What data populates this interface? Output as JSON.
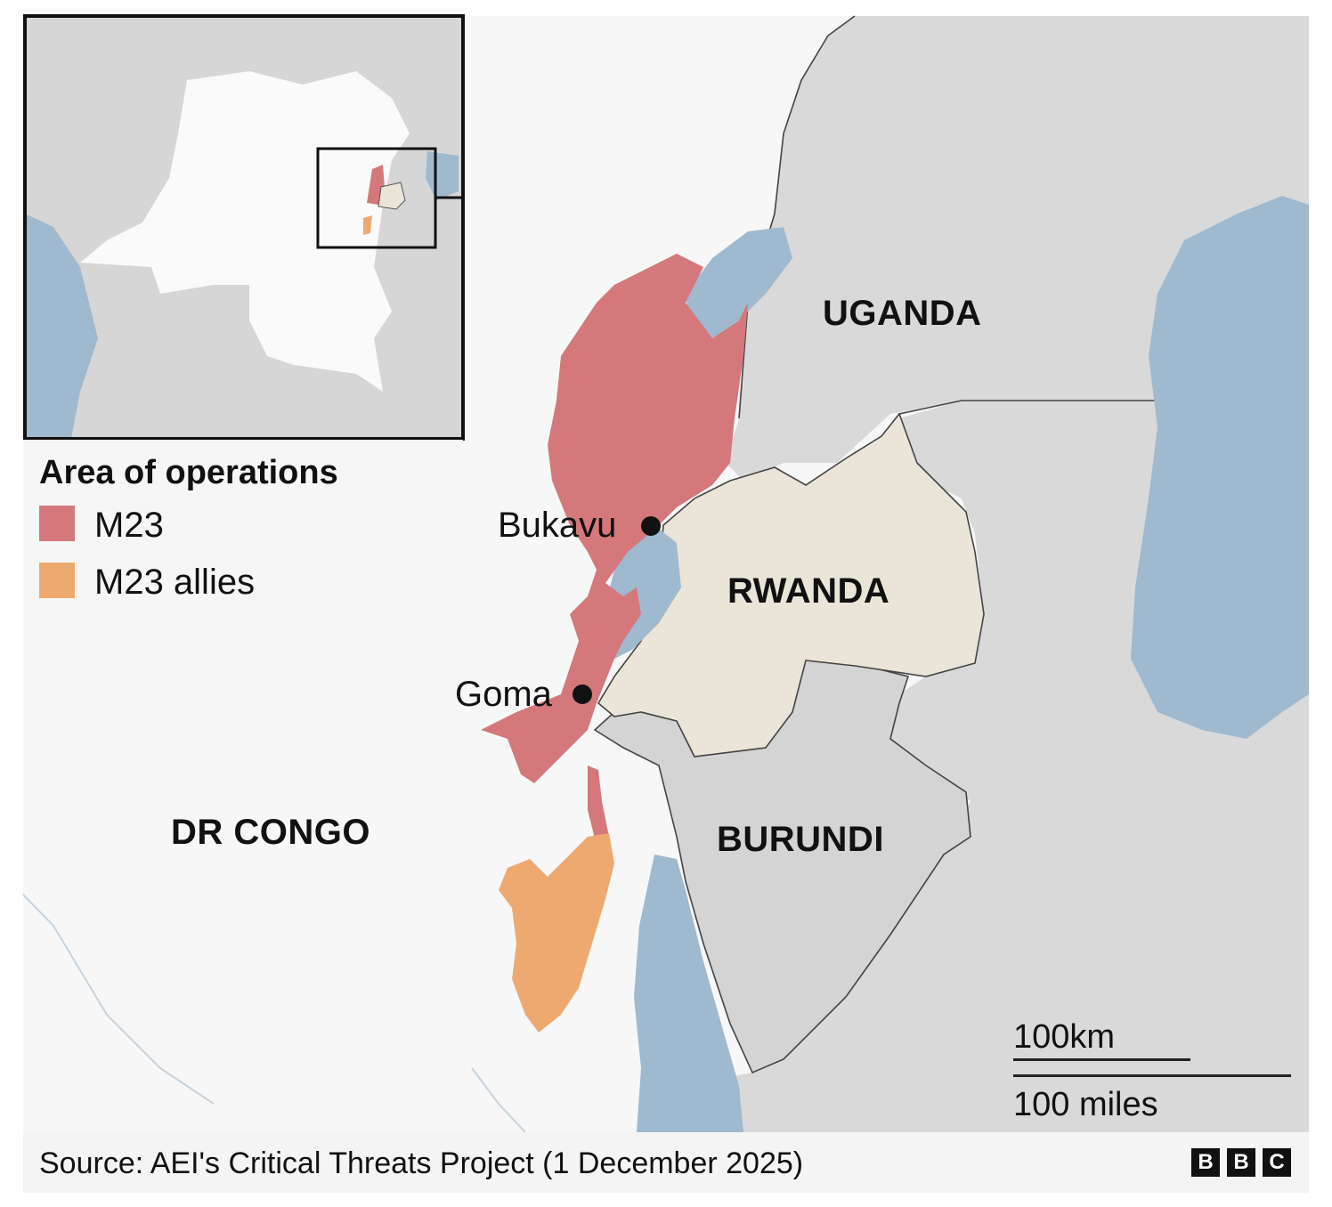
{
  "colors": {
    "m23": "#d4787c",
    "m23_allies": "#eea971",
    "rwanda": "#ebe5d9",
    "dr_congo": "#f7f7f7",
    "neighbours": "#d8d8d8",
    "water": "#9fb9cf"
  },
  "countries": {
    "uganda": "UGANDA",
    "rwanda": "RWANDA",
    "burundi": "BURUNDI",
    "dr_congo": "DR CONGO"
  },
  "cities": {
    "bukavu": "Bukavu",
    "goma": "Goma"
  },
  "legend": {
    "title": "Area of operations",
    "items": [
      {
        "label": "M23",
        "color": "#d4787c"
      },
      {
        "label": "M23 allies",
        "color": "#eea971"
      }
    ]
  },
  "scale": {
    "km_label": "100km",
    "miles_label": "100 miles"
  },
  "footer": {
    "source": "Source: AEI's Critical Threats Project (1 December 2025)",
    "logo_letters": [
      "B",
      "B",
      "C"
    ]
  }
}
